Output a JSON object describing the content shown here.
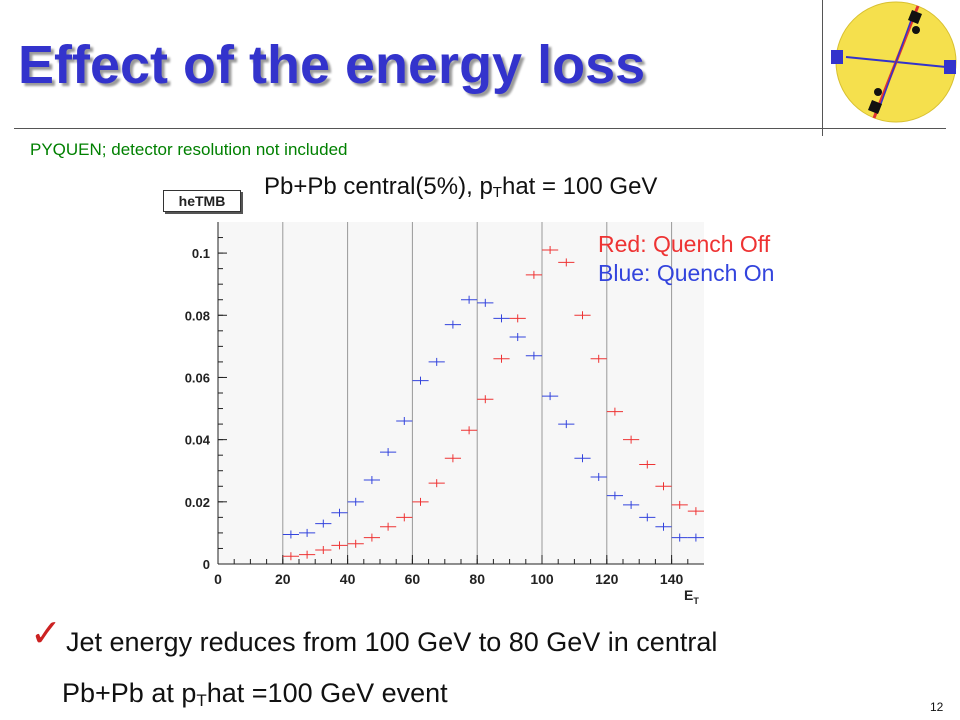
{
  "slide": {
    "title": "Effect of the energy loss",
    "subtitle": "PYQUEN;  detector resolution not included",
    "plot_title_prefix": "Pb+Pb central(5%), p",
    "plot_title_sub": "T",
    "plot_title_suffix": "hat = 100 GeV",
    "hist_label": "heTMB",
    "bullet_mark": "✓",
    "bullet_line1": "Jet energy reduces from 100 GeV to 80 GeV in central",
    "bullet_line2_prefix": "Pb+Pb at p",
    "bullet_line2_sub": "T",
    "bullet_line2_suffix": "hat =100 GeV event",
    "page_number": "12",
    "logo_icon": "jet-collision-logo-icon"
  },
  "chart_data": {
    "type": "scatter",
    "title": "",
    "xlabel": "E_T",
    "ylabel": "",
    "xlim": [
      0,
      150
    ],
    "ylim": [
      0,
      0.11
    ],
    "x_ticks": [
      0,
      20,
      40,
      60,
      80,
      100,
      120,
      140
    ],
    "x_tick_labels": [
      "0",
      "20",
      "40",
      "60",
      "80",
      "100",
      "120",
      "140"
    ],
    "y_ticks": [
      0,
      0.02,
      0.04,
      0.06,
      0.08,
      0.1
    ],
    "y_tick_labels": [
      "0",
      "0.02",
      "0.04",
      "0.06",
      "0.08",
      "0.1"
    ],
    "grid_x": true,
    "grid_y": false,
    "bin_width": 5,
    "legend": [
      {
        "text": "Red: Quench Off",
        "color": "#ee3333"
      },
      {
        "text": "Blue: Quench On",
        "color": "#3344dd"
      }
    ],
    "legend_placement": "top-right",
    "series": [
      {
        "name": "Quench Off",
        "color": "#ee3333",
        "x": [
          22.5,
          27.5,
          32.5,
          37.5,
          42.5,
          47.5,
          52.5,
          57.5,
          62.5,
          67.5,
          72.5,
          77.5,
          82.5,
          87.5,
          92.5,
          97.5,
          102.5,
          107.5,
          112.5,
          117.5,
          122.5,
          127.5,
          132.5,
          137.5,
          142.5,
          147.5
        ],
        "y": [
          0.0025,
          0.003,
          0.0045,
          0.006,
          0.0065,
          0.0085,
          0.012,
          0.015,
          0.02,
          0.026,
          0.034,
          0.043,
          0.053,
          0.066,
          0.079,
          0.093,
          0.101,
          0.097,
          0.08,
          0.066,
          0.049,
          0.04,
          0.032,
          0.025,
          0.019,
          0.017
        ]
      },
      {
        "name": "Quench On",
        "color": "#3344dd",
        "x": [
          22.5,
          27.5,
          32.5,
          37.5,
          42.5,
          47.5,
          52.5,
          57.5,
          62.5,
          67.5,
          72.5,
          77.5,
          82.5,
          87.5,
          92.5,
          97.5,
          102.5,
          107.5,
          112.5,
          117.5,
          122.5,
          127.5,
          132.5,
          137.5,
          142.5,
          147.5
        ],
        "y": [
          0.0095,
          0.01,
          0.013,
          0.0165,
          0.02,
          0.027,
          0.036,
          0.046,
          0.059,
          0.065,
          0.077,
          0.085,
          0.084,
          0.079,
          0.073,
          0.067,
          0.054,
          0.045,
          0.034,
          0.028,
          0.022,
          0.019,
          0.015,
          0.012,
          0.0085,
          0.0085
        ]
      }
    ]
  }
}
